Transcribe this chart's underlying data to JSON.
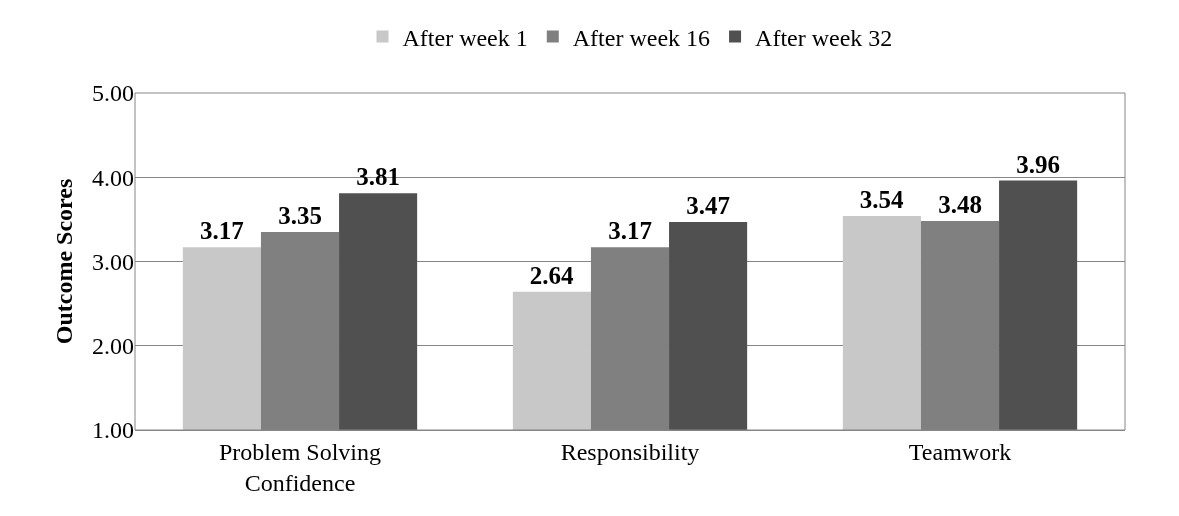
{
  "chart_data": {
    "type": "bar",
    "ylabel": "Outcome Scores",
    "categories": [
      "Problem Solving Confidence",
      "Responsibility",
      "Teamwork"
    ],
    "series": [
      {
        "name": "After week 1",
        "color": "#c8c8c8",
        "values": [
          3.17,
          2.64,
          3.54
        ]
      },
      {
        "name": "After week 16",
        "color": "#808080",
        "values": [
          3.35,
          3.17,
          3.48
        ]
      },
      {
        "name": "After week 32",
        "color": "#505050",
        "values": [
          3.81,
          3.47,
          3.96
        ]
      }
    ],
    "ylim": [
      1,
      5
    ],
    "yticks": [
      {
        "value": 1,
        "label": "1.00"
      },
      {
        "value": 2,
        "label": "2.00"
      },
      {
        "value": 3,
        "label": "3.00"
      },
      {
        "value": 4,
        "label": "4.00"
      },
      {
        "value": 5,
        "label": "5.00"
      }
    ],
    "grid": "y",
    "legend": "top",
    "data_labels": true
  }
}
